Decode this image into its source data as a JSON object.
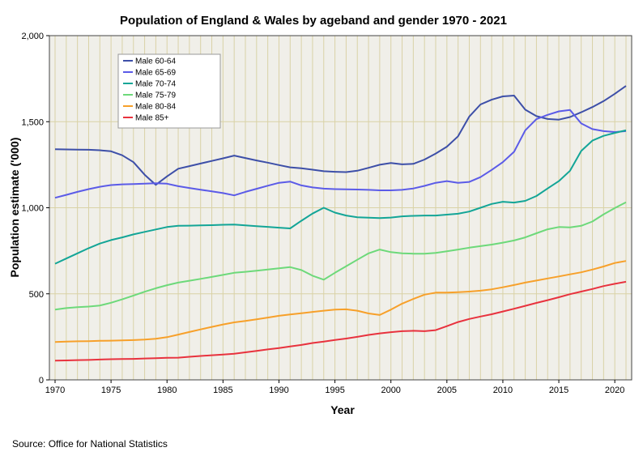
{
  "chart_data": {
    "type": "line",
    "title": "Population of England & Wales by ageband and gender 1970 - 2021",
    "xlabel": "Year",
    "ylabel": "Population estimate ('000)",
    "source": "Source: Office for National Statistics",
    "xlim": [
      1970,
      2021
    ],
    "ylim": [
      0,
      2000
    ],
    "xticks": [
      1970,
      1975,
      1980,
      1985,
      1990,
      1995,
      2000,
      2005,
      2010,
      2015,
      2020
    ],
    "xtick_labels": [
      "1970",
      "1975",
      "1980",
      "1985",
      "1990",
      "1995",
      "2000",
      "2005",
      "2010",
      "2015",
      "2020"
    ],
    "yticks": [
      0,
      500,
      1000,
      1500,
      2000
    ],
    "ytick_labels": [
      "0",
      "500",
      "1,000",
      "1,500",
      "2,000"
    ],
    "grid": true,
    "legend_position": "top-left",
    "x": [
      1970,
      1971,
      1972,
      1973,
      1974,
      1975,
      1976,
      1977,
      1978,
      1979,
      1980,
      1981,
      1982,
      1983,
      1984,
      1985,
      1986,
      1987,
      1988,
      1989,
      1990,
      1991,
      1992,
      1993,
      1994,
      1995,
      1996,
      1997,
      1998,
      1999,
      2000,
      2001,
      2002,
      2003,
      2004,
      2005,
      2006,
      2007,
      2008,
      2009,
      2010,
      2011,
      2012,
      2013,
      2014,
      2015,
      2016,
      2017,
      2018,
      2019,
      2020,
      2021
    ],
    "series": [
      {
        "name": "Male 60-64",
        "color": "#3d4fa8",
        "values": [
          1340,
          1339,
          1338,
          1337,
          1334,
          1328,
          1305,
          1265,
          1192,
          1133,
          1182,
          1227,
          1242,
          1257,
          1272,
          1287,
          1303,
          1289,
          1275,
          1262,
          1248,
          1235,
          1229,
          1221,
          1212,
          1209,
          1207,
          1215,
          1232,
          1250,
          1260,
          1252,
          1255,
          1280,
          1315,
          1355,
          1415,
          1530,
          1600,
          1628,
          1647,
          1652,
          1570,
          1532,
          1516,
          1512,
          1527,
          1555,
          1585,
          1620,
          1662,
          1708
        ]
      },
      {
        "name": "Male 65-69",
        "color": "#5b5be8",
        "values": [
          1058,
          1075,
          1092,
          1108,
          1122,
          1132,
          1136,
          1138,
          1140,
          1142,
          1140,
          1125,
          1115,
          1105,
          1095,
          1085,
          1072,
          1092,
          1110,
          1128,
          1145,
          1152,
          1130,
          1118,
          1111,
          1108,
          1107,
          1106,
          1104,
          1101,
          1101,
          1104,
          1112,
          1127,
          1145,
          1155,
          1145,
          1150,
          1178,
          1220,
          1265,
          1325,
          1450,
          1515,
          1540,
          1560,
          1568,
          1490,
          1457,
          1445,
          1440,
          1445
        ]
      },
      {
        "name": "Male 70-74",
        "color": "#13a597",
        "values": [
          675,
          705,
          735,
          765,
          792,
          812,
          828,
          845,
          860,
          874,
          888,
          895,
          896,
          898,
          899,
          901,
          902,
          898,
          893,
          889,
          884,
          880,
          924,
          966,
          1000,
          972,
          955,
          945,
          942,
          940,
          943,
          950,
          953,
          955,
          955,
          960,
          965,
          978,
          1000,
          1022,
          1035,
          1030,
          1040,
          1068,
          1112,
          1155,
          1215,
          1330,
          1390,
          1418,
          1435,
          1450
        ]
      },
      {
        "name": "Male 75-79",
        "color": "#6dd97a",
        "values": [
          408,
          417,
          422,
          426,
          432,
          448,
          468,
          490,
          512,
          532,
          550,
          565,
          576,
          587,
          598,
          610,
          622,
          628,
          634,
          641,
          648,
          655,
          638,
          605,
          582,
          622,
          660,
          698,
          735,
          757,
          742,
          735,
          733,
          733,
          738,
          747,
          757,
          768,
          777,
          786,
          797,
          810,
          828,
          852,
          875,
          888,
          886,
          895,
          920,
          962,
          998,
          1032
        ]
      },
      {
        "name": "Male 80-84",
        "color": "#f7a02a",
        "values": [
          220,
          222,
          224,
          225,
          227,
          228,
          229,
          231,
          234,
          239,
          248,
          263,
          278,
          293,
          308,
          322,
          334,
          342,
          352,
          362,
          372,
          380,
          387,
          395,
          402,
          408,
          410,
          402,
          386,
          377,
          408,
          443,
          470,
          495,
          507,
          507,
          509,
          513,
          518,
          526,
          538,
          551,
          565,
          577,
          589,
          601,
          613,
          625,
          641,
          659,
          679,
          691
        ]
      },
      {
        "name": "Male 85+",
        "color": "#e8323e",
        "values": [
          112,
          113,
          115,
          116,
          118,
          120,
          121,
          122,
          124,
          126,
          128,
          129,
          134,
          139,
          143,
          147,
          152,
          160,
          168,
          177,
          185,
          194,
          203,
          214,
          222,
          232,
          240,
          250,
          261,
          270,
          277,
          283,
          285,
          283,
          289,
          312,
          336,
          354,
          368,
          381,
          397,
          413,
          430,
          447,
          463,
          480,
          498,
          513,
          528,
          545,
          558,
          570
        ]
      }
    ]
  }
}
